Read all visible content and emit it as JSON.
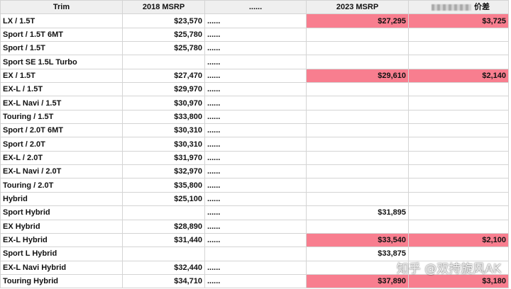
{
  "columns": {
    "trim": "Trim",
    "msrp_2018": "2018 MSRP",
    "dots": "......",
    "msrp_2023": "2023 MSRP",
    "diff": "价差"
  },
  "dots_text": "......",
  "highlight_color": "#f87e8f",
  "rows": [
    {
      "trim": "LX / 1.5T",
      "msrp_2018": "$23,570",
      "msrp_2023": "$27,295",
      "diff": "$3,725",
      "hl": true
    },
    {
      "trim": "Sport / 1.5T 6MT",
      "msrp_2018": "$25,780",
      "msrp_2023": "",
      "diff": "",
      "hl": false
    },
    {
      "trim": "Sport / 1.5T",
      "msrp_2018": "$25,780",
      "msrp_2023": "",
      "diff": "",
      "hl": false
    },
    {
      "trim": "Sport SE 1.5L Turbo",
      "msrp_2018": "",
      "msrp_2023": "",
      "diff": "",
      "hl": false
    },
    {
      "trim": "EX / 1.5T",
      "msrp_2018": "$27,470",
      "msrp_2023": "$29,610",
      "diff": "$2,140",
      "hl": true
    },
    {
      "trim": "EX-L / 1.5T",
      "msrp_2018": "$29,970",
      "msrp_2023": "",
      "diff": "",
      "hl": false
    },
    {
      "trim": "EX-L Navi / 1.5T",
      "msrp_2018": "$30,970",
      "msrp_2023": "",
      "diff": "",
      "hl": false
    },
    {
      "trim": "Touring / 1.5T",
      "msrp_2018": "$33,800",
      "msrp_2023": "",
      "diff": "",
      "hl": false
    },
    {
      "trim": "Sport / 2.0T 6MT",
      "msrp_2018": "$30,310",
      "msrp_2023": "",
      "diff": "",
      "hl": false
    },
    {
      "trim": "Sport / 2.0T",
      "msrp_2018": "$30,310",
      "msrp_2023": "",
      "diff": "",
      "hl": false
    },
    {
      "trim": "EX-L / 2.0T",
      "msrp_2018": "$31,970",
      "msrp_2023": "",
      "diff": "",
      "hl": false
    },
    {
      "trim": "EX-L Navi / 2.0T",
      "msrp_2018": "$32,970",
      "msrp_2023": "",
      "diff": "",
      "hl": false
    },
    {
      "trim": "Touring / 2.0T",
      "msrp_2018": "$35,800",
      "msrp_2023": "",
      "diff": "",
      "hl": false
    },
    {
      "trim": "Hybrid",
      "msrp_2018": "$25,100",
      "msrp_2023": "",
      "diff": "",
      "hl": false
    },
    {
      "trim": "Sport Hybrid",
      "msrp_2018": "",
      "msrp_2023": "$31,895",
      "diff": "",
      "hl": false
    },
    {
      "trim": "EX Hybrid",
      "msrp_2018": "$28,890",
      "msrp_2023": "",
      "diff": "",
      "hl": false
    },
    {
      "trim": "EX-L Hybrid",
      "msrp_2018": "$31,440",
      "msrp_2023": "$33,540",
      "diff": "$2,100",
      "hl": true
    },
    {
      "trim": "Sport L Hybrid",
      "msrp_2018": "",
      "msrp_2023": "$33,875",
      "diff": "",
      "hl": false
    },
    {
      "trim": "EX-L Navi Hybrid",
      "msrp_2018": "$32,440",
      "msrp_2023": "",
      "diff": "",
      "hl": false
    },
    {
      "trim": "Touring Hybrid",
      "msrp_2018": "$34,710",
      "msrp_2023": "$37,890",
      "diff": "$3,180",
      "hl": true
    }
  ],
  "watermark": "知乎 @双持旋风AK"
}
